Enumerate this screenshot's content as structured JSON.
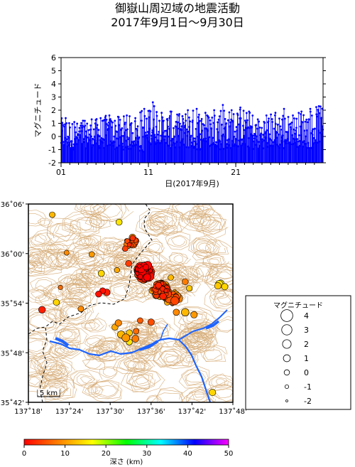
{
  "title_line1": "御嶽山周辺域の地震活動",
  "title_line2": "2017年9月1日〜9月30日",
  "chart_data": [
    {
      "type": "stem",
      "ylabel": "マグニチュード",
      "xlabel": "日(2017年9月)",
      "xlim": [
        1,
        30.99
      ],
      "ylim": [
        -2,
        6
      ],
      "yticks": [
        -2,
        -1,
        0,
        1,
        2,
        3,
        4,
        5,
        6
      ],
      "xticks": [
        {
          "day": 1,
          "label": "01"
        },
        {
          "day": 11,
          "label": "11"
        },
        {
          "day": 21,
          "label": "21"
        }
      ],
      "color": "#0000ff",
      "daily_max": [
        1.4,
        1.1,
        1.2,
        1.3,
        1.4,
        1.6,
        1.5,
        1.6,
        1.4,
        2.1,
        2.6,
        1.8,
        1.9,
        1.7,
        2.0,
        2.1,
        1.8,
        2.0,
        2.4,
        2.0,
        2.2,
        1.9,
        1.3,
        1.6,
        1.8,
        2.1,
        1.6,
        1.9,
        2.1,
        2.3
      ],
      "daily_min": [
        -1.0,
        -1.0,
        -0.9,
        -0.8,
        -0.9,
        -0.8,
        -1.0,
        -1.0,
        -0.8,
        -1.2,
        -0.6,
        -0.5,
        -0.9,
        -1.0,
        -0.9,
        -1.0,
        -0.6,
        -0.8,
        -1.0,
        -0.9,
        -0.8,
        -0.9,
        -1.0,
        -0.9,
        -0.8,
        -1.0,
        -0.6,
        -0.8,
        -0.9,
        -0.5
      ],
      "events_per_day": 22
    },
    {
      "type": "scatter",
      "subtype": "epicenter-map",
      "lon_ticks": [
        "137˚18'",
        "137˚24'",
        "137˚30'",
        "137˚36'",
        "137˚42'",
        "137˚48'"
      ],
      "lat_ticks": [
        "36˚06'",
        "36˚00'",
        "35˚54'",
        "35˚48'",
        "35˚42'"
      ],
      "xlim_min": [
        1098,
        1128
      ],
      "ylim_min": [
        2142,
        2166
      ],
      "scale_label": "5 km",
      "clusters": [
        {
          "lon_min": 1115.0,
          "lat_min": 2157.8,
          "spread": 1.0,
          "n": 140,
          "depth_center": 3
        },
        {
          "lon_min": 1117.3,
          "lat_min": 2155.6,
          "spread": 1.0,
          "n": 55,
          "depth_center": 6
        },
        {
          "lon_min": 1119.0,
          "lat_min": 2154.7,
          "spread": 0.9,
          "n": 28,
          "depth_center": 8
        },
        {
          "lon_min": 1113.1,
          "lat_min": 2161.4,
          "spread": 0.65,
          "n": 22,
          "depth_center": 6
        }
      ],
      "scattered": [
        {
          "lon_min": 1101.5,
          "lat_min": 2164.7,
          "mag": 0.3,
          "depth": 12
        },
        {
          "lon_min": 1103.6,
          "lat_min": 2160.1,
          "mag": -0.2,
          "depth": 9
        },
        {
          "lon_min": 1107.3,
          "lat_min": 2159.9,
          "mag": 0.2,
          "depth": 10
        },
        {
          "lon_min": 1108.7,
          "lat_min": 2157.6,
          "mag": 0.6,
          "depth": 14
        },
        {
          "lon_min": 1108.9,
          "lat_min": 2155.5,
          "mag": 0.4,
          "depth": 1
        },
        {
          "lon_min": 1109.5,
          "lat_min": 2155.3,
          "mag": 0.9,
          "depth": 2
        },
        {
          "lon_min": 1108.3,
          "lat_min": 2155.1,
          "mag": 0.5,
          "depth": 1
        },
        {
          "lon_min": 1102.1,
          "lat_min": 2154.1,
          "mag": 0.5,
          "depth": 14
        },
        {
          "lon_min": 1100.0,
          "lat_min": 2153.2,
          "mag": 1.0,
          "depth": 2
        },
        {
          "lon_min": 1102.7,
          "lat_min": 2155.9,
          "mag": -0.5,
          "depth": 7
        },
        {
          "lon_min": 1105.7,
          "lat_min": 2153.3,
          "mag": 0.3,
          "depth": 9
        },
        {
          "lon_min": 1111.0,
          "lat_min": 2158.0,
          "mag": 0.0,
          "depth": 11
        },
        {
          "lon_min": 1111.3,
          "lat_min": 2163.8,
          "mag": 0.5,
          "depth": 15
        },
        {
          "lon_min": 1112.2,
          "lat_min": 2160.6,
          "mag": 0.2,
          "depth": 4
        },
        {
          "lon_min": 1112.7,
          "lat_min": 2158.8,
          "mag": 0.5,
          "depth": 4
        },
        {
          "lon_min": 1111.6,
          "lat_min": 2150.2,
          "mag": 1.2,
          "depth": 12
        },
        {
          "lon_min": 1112.3,
          "lat_min": 2149.8,
          "mag": 1.6,
          "depth": 10
        },
        {
          "lon_min": 1111.2,
          "lat_min": 2151.6,
          "mag": 0.8,
          "depth": 9
        },
        {
          "lon_min": 1112.8,
          "lat_min": 2150.4,
          "mag": 0.6,
          "depth": 13
        },
        {
          "lon_min": 1113.7,
          "lat_min": 2149.7,
          "mag": 1.0,
          "depth": 8
        },
        {
          "lon_min": 1113.8,
          "lat_min": 2150.6,
          "mag": 0.3,
          "depth": 7
        },
        {
          "lon_min": 1110.7,
          "lat_min": 2151.1,
          "mag": 0.5,
          "depth": 11
        },
        {
          "lon_min": 1112.8,
          "lat_min": 2149.3,
          "mag": 0.4,
          "depth": 15
        },
        {
          "lon_min": 1114.4,
          "lat_min": 2151.9,
          "mag": 0.2,
          "depth": 6
        },
        {
          "lon_min": 1116.0,
          "lat_min": 2151.7,
          "mag": 0.7,
          "depth": 5
        },
        {
          "lon_min": 1119.7,
          "lat_min": 2152.9,
          "mag": 0.6,
          "depth": 9
        },
        {
          "lon_min": 1121.0,
          "lat_min": 2152.9,
          "mag": 1.4,
          "depth": 12
        },
        {
          "lon_min": 1122.3,
          "lat_min": 2152.6,
          "mag": 0.8,
          "depth": 10
        },
        {
          "lon_min": 1121.0,
          "lat_min": 2156.6,
          "mag": 0.5,
          "depth": 8
        },
        {
          "lon_min": 1121.6,
          "lat_min": 2155.8,
          "mag": 0.3,
          "depth": 13
        },
        {
          "lon_min": 1126.0,
          "lat_min": 2156.3,
          "mag": 1.3,
          "depth": 15
        },
        {
          "lon_min": 1126.2,
          "lat_min": 2156.4,
          "mag": 1.0,
          "depth": 16
        },
        {
          "lon_min": 1125.8,
          "lat_min": 2156.1,
          "mag": 0.8,
          "depth": 13
        },
        {
          "lon_min": 1126.8,
          "lat_min": 2156.0,
          "mag": 0.7,
          "depth": 14
        },
        {
          "lon_min": 1125.0,
          "lat_min": 2143.2,
          "mag": 0.8,
          "depth": 14
        },
        {
          "lon_min": 1118.2,
          "lat_min": 2156.2,
          "mag": 0.4,
          "depth": 10
        },
        {
          "lon_min": 1118.9,
          "lat_min": 2157.1,
          "mag": 0.2,
          "depth": 12
        }
      ]
    },
    {
      "type": "legend",
      "title": "マグニチュード",
      "mags": [
        4,
        3,
        2,
        1,
        0,
        -1,
        -2
      ]
    },
    {
      "type": "colorbar",
      "label": "深さ (km)",
      "ticks": [
        0,
        10,
        20,
        30,
        40,
        50
      ],
      "range": [
        0,
        50
      ],
      "stops": [
        "#ff0000",
        "#ff8000",
        "#ffff00",
        "#00ff00",
        "#00ffff",
        "#0000ff",
        "#ff00ff"
      ]
    }
  ],
  "colors": {
    "topo": "#d2a46a",
    "border": "#000000",
    "river": "#1e64ff",
    "stem": "#0000ff"
  }
}
